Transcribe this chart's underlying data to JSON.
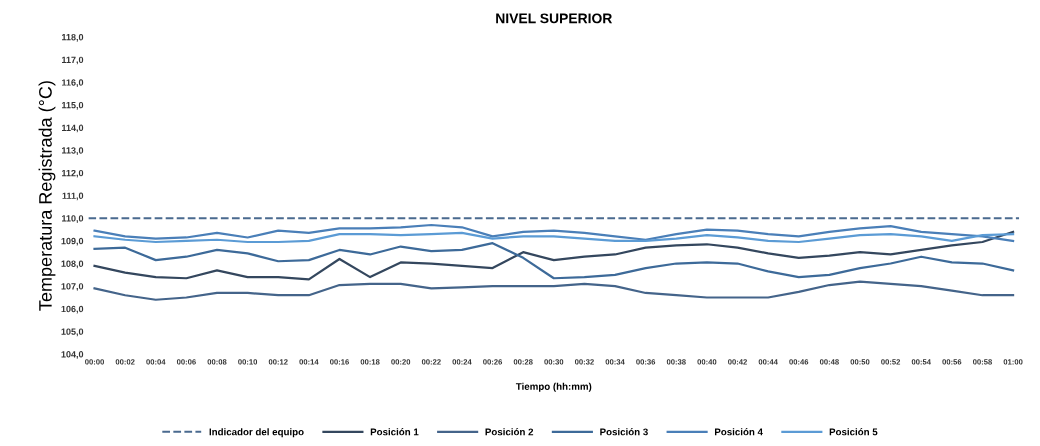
{
  "chart_data": {
    "type": "line",
    "title": "NIVEL SUPERIOR",
    "xlabel": "Tiempo (hh:mm)",
    "ylabel": "Temperatura Registrada (°C)",
    "categories": [
      "00:00",
      "00:02",
      "00:04",
      "00:06",
      "00:08",
      "00:10",
      "00:12",
      "00:14",
      "00:16",
      "00:18",
      "00:20",
      "00:22",
      "00:24",
      "00:26",
      "00:28",
      "00:30",
      "00:32",
      "00:34",
      "00:36",
      "00:38",
      "00:40",
      "00:42",
      "00:44",
      "00:46",
      "00:48",
      "00:50",
      "00:52",
      "00:54",
      "00:56",
      "00:58",
      "01:00"
    ],
    "ylim": [
      104,
      118
    ],
    "yticks": [
      {
        "value": 104,
        "label": "104,0"
      },
      {
        "value": 105,
        "label": "105,0"
      },
      {
        "value": 106,
        "label": "106,0"
      },
      {
        "value": 107,
        "label": "107,0"
      },
      {
        "value": 108,
        "label": "108,0"
      },
      {
        "value": 109,
        "label": "109,0"
      },
      {
        "value": 110,
        "label": "110,0"
      },
      {
        "value": 111,
        "label": "111,0"
      },
      {
        "value": 112,
        "label": "112,0"
      },
      {
        "value": 113,
        "label": "113,0"
      },
      {
        "value": 114,
        "label": "114,0"
      },
      {
        "value": 115,
        "label": "115,0"
      },
      {
        "value": 116,
        "label": "116,0"
      },
      {
        "value": 117,
        "label": "117,0"
      },
      {
        "value": 118,
        "label": "118,0"
      }
    ],
    "ref_lines": [
      {
        "axis": "y",
        "value": 110,
        "label": "Indicador del equipo",
        "color": "#4a6a8f",
        "line_style": "dashed"
      }
    ],
    "series": [
      {
        "name": "Posición 1",
        "color": "#34475e",
        "values": [
          107.9,
          107.6,
          107.4,
          107.35,
          107.7,
          107.4,
          107.4,
          107.3,
          108.2,
          107.4,
          108.05,
          108.0,
          107.9,
          107.8,
          108.5,
          108.15,
          108.3,
          108.4,
          108.7,
          108.8,
          108.85,
          108.7,
          108.45,
          108.25,
          108.35,
          108.5,
          108.4,
          108.6,
          108.8,
          108.95,
          109.4
        ]
      },
      {
        "name": "Posición 2",
        "color": "#44648a",
        "values": [
          106.9,
          106.6,
          106.4,
          106.5,
          106.7,
          106.7,
          106.6,
          106.6,
          107.05,
          107.1,
          107.1,
          106.9,
          106.95,
          107.0,
          107.0,
          107.0,
          107.1,
          107.0,
          106.7,
          106.6,
          106.5,
          106.5,
          106.5,
          106.75,
          107.05,
          107.2,
          107.1,
          107.0,
          106.8,
          106.6,
          106.6
        ]
      },
      {
        "name": "Posición 3",
        "color": "#3d6a99",
        "values": [
          108.65,
          108.7,
          108.15,
          108.3,
          108.6,
          108.45,
          108.1,
          108.15,
          108.6,
          108.4,
          108.75,
          108.55,
          108.6,
          108.9,
          108.25,
          107.35,
          107.4,
          107.5,
          107.8,
          108.0,
          108.05,
          108.0,
          107.65,
          107.4,
          107.5,
          107.8,
          108.0,
          108.3,
          108.05,
          108.0,
          107.7
        ]
      },
      {
        "name": "Posición 4",
        "color": "#4a7fb8",
        "values": [
          109.45,
          109.2,
          109.1,
          109.15,
          109.35,
          109.15,
          109.45,
          109.35,
          109.55,
          109.55,
          109.6,
          109.7,
          109.6,
          109.2,
          109.4,
          109.45,
          109.35,
          109.2,
          109.05,
          109.3,
          109.5,
          109.45,
          109.3,
          109.2,
          109.4,
          109.55,
          109.65,
          109.4,
          109.3,
          109.2,
          109.0
        ]
      },
      {
        "name": "Posición 5",
        "color": "#5b9bd5",
        "values": [
          109.2,
          109.05,
          108.95,
          109.0,
          109.05,
          108.95,
          108.95,
          109.0,
          109.3,
          109.3,
          109.25,
          109.3,
          109.35,
          109.1,
          109.2,
          109.2,
          109.1,
          109.0,
          109.0,
          109.1,
          109.25,
          109.15,
          109.0,
          108.95,
          109.1,
          109.25,
          109.3,
          109.2,
          109.0,
          109.25,
          109.3
        ]
      }
    ],
    "legend": "bottom",
    "grid": false,
    "marker": "none",
    "line_style": "solid"
  }
}
